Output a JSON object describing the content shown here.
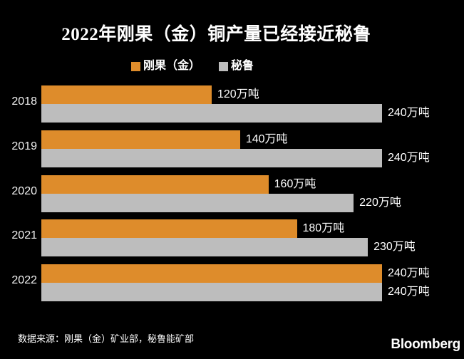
{
  "title": "2022年刚果（金）铜产量已经接近秘鲁",
  "legend": {
    "items": [
      {
        "label": "刚果（金）",
        "color": "#DE8C2B"
      },
      {
        "label": "秘鲁",
        "color": "#BDBDBD"
      }
    ]
  },
  "chart_data": {
    "type": "bar",
    "orientation": "horizontal",
    "title": "2022年刚果（金）铜产量已经接近秘鲁",
    "categories": [
      "2018",
      "2019",
      "2020",
      "2021",
      "2022"
    ],
    "series": [
      {
        "name": "刚果（金）",
        "color": "#DE8C2B",
        "values": [
          120,
          140,
          160,
          180,
          240
        ],
        "labels": [
          "120万吨",
          "140万吨",
          "160万吨",
          "180万吨",
          "240万吨"
        ]
      },
      {
        "name": "秘鲁",
        "color": "#BDBDBD",
        "values": [
          240,
          240,
          220,
          230,
          240
        ],
        "labels": [
          "240万吨",
          "240万吨",
          "220万吨",
          "230万吨",
          "240万吨"
        ]
      }
    ],
    "unit": "万吨",
    "xlim": [
      0,
      240
    ],
    "grid": false,
    "legend_position": "top",
    "value_labels": true
  },
  "footer": {
    "source": "数据来源：刚果（金）矿业部，秘鲁能矿部",
    "brand": "Bloomberg"
  },
  "colors": {
    "background": "#000000",
    "text": "#FFFFFF"
  }
}
